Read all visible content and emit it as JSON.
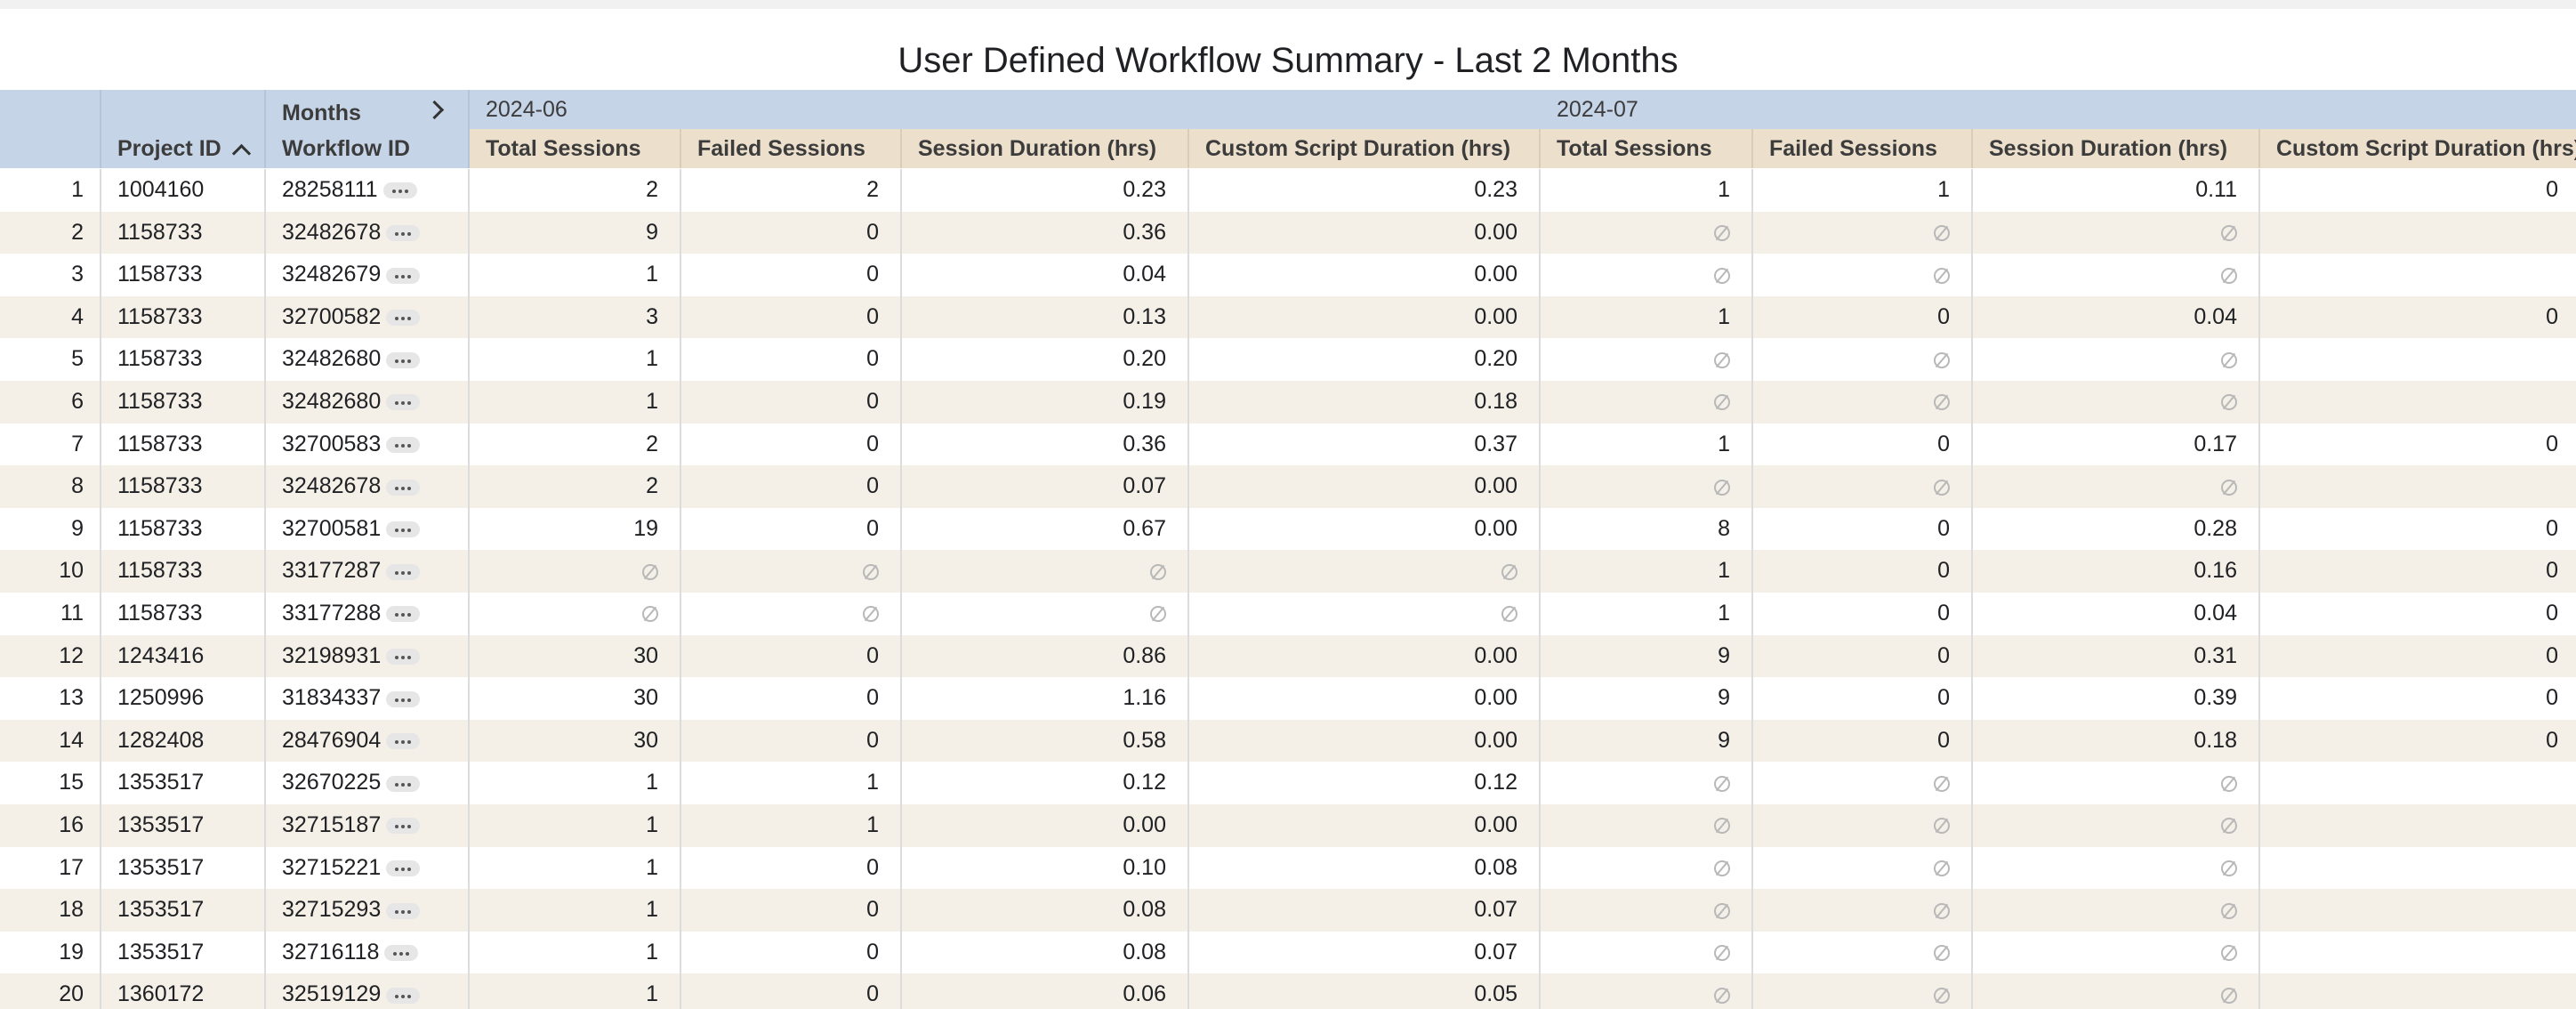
{
  "header": {
    "title": "User Defined Workflow Summary - Last 2 Months"
  },
  "table": {
    "dimension_label": "Months",
    "columns": [
      "Project ID",
      "Workflow ID"
    ],
    "months": [
      {
        "label": "2024-06",
        "measures": [
          "Total Sessions",
          "Failed Sessions",
          "Session Duration (hrs)",
          "Custom Script Duration (hrs)"
        ]
      },
      {
        "label": "2024-07",
        "measures": [
          "Total Sessions",
          "Failed Sessions",
          "Session Duration (hrs)",
          "Custom Script Duration (hrs)"
        ]
      }
    ],
    "rows": [
      {
        "n": 1,
        "project_id": "1004160",
        "workflow_id": "28258111",
        "cells": [
          "2",
          "2",
          "0.23",
          "0.23",
          "1",
          "1",
          "0.11",
          "0"
        ]
      },
      {
        "n": 2,
        "project_id": "1158733",
        "workflow_id": "32482678",
        "cells": [
          "9",
          "0",
          "0.36",
          "0.00",
          null,
          null,
          null,
          null
        ]
      },
      {
        "n": 3,
        "project_id": "1158733",
        "workflow_id": "32482679",
        "cells": [
          "1",
          "0",
          "0.04",
          "0.00",
          null,
          null,
          null,
          null
        ]
      },
      {
        "n": 4,
        "project_id": "1158733",
        "workflow_id": "32700582",
        "cells": [
          "3",
          "0",
          "0.13",
          "0.00",
          "1",
          "0",
          "0.04",
          "0"
        ]
      },
      {
        "n": 5,
        "project_id": "1158733",
        "workflow_id": "32482680",
        "cells": [
          "1",
          "0",
          "0.20",
          "0.20",
          null,
          null,
          null,
          null
        ]
      },
      {
        "n": 6,
        "project_id": "1158733",
        "workflow_id": "32482680",
        "cells": [
          "1",
          "0",
          "0.19",
          "0.18",
          null,
          null,
          null,
          null
        ]
      },
      {
        "n": 7,
        "project_id": "1158733",
        "workflow_id": "32700583",
        "cells": [
          "2",
          "0",
          "0.36",
          "0.37",
          "1",
          "0",
          "0.17",
          "0"
        ]
      },
      {
        "n": 8,
        "project_id": "1158733",
        "workflow_id": "32482678",
        "cells": [
          "2",
          "0",
          "0.07",
          "0.00",
          null,
          null,
          null,
          null
        ]
      },
      {
        "n": 9,
        "project_id": "1158733",
        "workflow_id": "32700581",
        "cells": [
          "19",
          "0",
          "0.67",
          "0.00",
          "8",
          "0",
          "0.28",
          "0"
        ]
      },
      {
        "n": 10,
        "project_id": "1158733",
        "workflow_id": "33177287",
        "cells": [
          null,
          null,
          null,
          null,
          "1",
          "0",
          "0.16",
          "0"
        ]
      },
      {
        "n": 11,
        "project_id": "1158733",
        "workflow_id": "33177288",
        "cells": [
          null,
          null,
          null,
          null,
          "1",
          "0",
          "0.04",
          "0"
        ]
      },
      {
        "n": 12,
        "project_id": "1243416",
        "workflow_id": "32198931",
        "cells": [
          "30",
          "0",
          "0.86",
          "0.00",
          "9",
          "0",
          "0.31",
          "0"
        ]
      },
      {
        "n": 13,
        "project_id": "1250996",
        "workflow_id": "31834337",
        "cells": [
          "30",
          "0",
          "1.16",
          "0.00",
          "9",
          "0",
          "0.39",
          "0"
        ]
      },
      {
        "n": 14,
        "project_id": "1282408",
        "workflow_id": "28476904",
        "cells": [
          "30",
          "0",
          "0.58",
          "0.00",
          "9",
          "0",
          "0.18",
          "0"
        ]
      },
      {
        "n": 15,
        "project_id": "1353517",
        "workflow_id": "32670225",
        "cells": [
          "1",
          "1",
          "0.12",
          "0.12",
          null,
          null,
          null,
          null
        ]
      },
      {
        "n": 16,
        "project_id": "1353517",
        "workflow_id": "32715187",
        "cells": [
          "1",
          "1",
          "0.00",
          "0.00",
          null,
          null,
          null,
          null
        ]
      },
      {
        "n": 17,
        "project_id": "1353517",
        "workflow_id": "32715221",
        "cells": [
          "1",
          "0",
          "0.10",
          "0.08",
          null,
          null,
          null,
          null
        ]
      },
      {
        "n": 18,
        "project_id": "1353517",
        "workflow_id": "32715293",
        "cells": [
          "1",
          "0",
          "0.08",
          "0.07",
          null,
          null,
          null,
          null
        ]
      },
      {
        "n": 19,
        "project_id": "1353517",
        "workflow_id": "32716118",
        "cells": [
          "1",
          "0",
          "0.08",
          "0.07",
          null,
          null,
          null,
          null
        ]
      },
      {
        "n": 20,
        "project_id": "1360172",
        "workflow_id": "32519129",
        "cells": [
          "1",
          "0",
          "0.06",
          "0.05",
          null,
          null,
          null,
          null
        ]
      }
    ]
  }
}
